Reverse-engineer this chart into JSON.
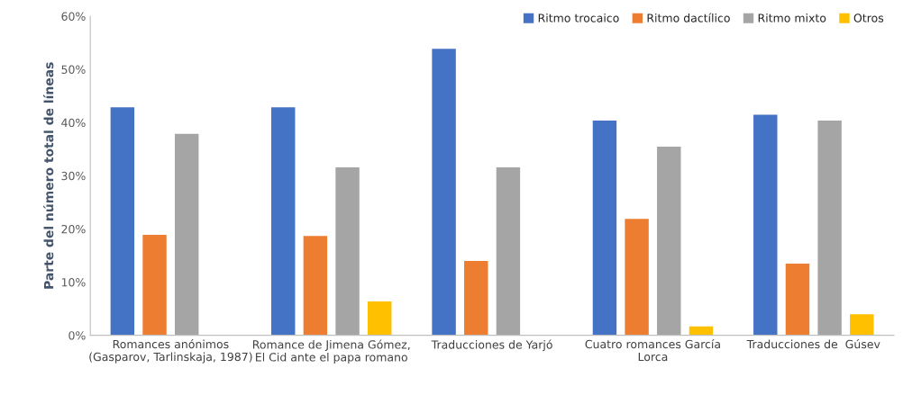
{
  "chart_data": {
    "type": "bar",
    "ylabel": "Parte del número total de líneas",
    "categories": [
      "Romances anónimos\n(Gasparov, Tarlinskaja, 1987)",
      "Romance de Jimena Gómez,\nEl Cid ante el papa romano",
      "Traducciones de Yarjó",
      "Cuatro romances García\nLorca",
      "Traducciones de  Gúsev"
    ],
    "series": [
      {
        "name": "Ritmo trocaico",
        "color": "#4472c4",
        "values": [
          43,
          43,
          54,
          40.5,
          41.6
        ]
      },
      {
        "name": "Ritmo dactílico",
        "color": "#ed7d31",
        "values": [
          19,
          18.8,
          14.1,
          22,
          13.6
        ]
      },
      {
        "name": "Ritmo mixto",
        "color": "#a5a5a5",
        "values": [
          38,
          31.7,
          31.7,
          35.6,
          40.5
        ]
      },
      {
        "name": "Otros",
        "color": "#ffc000",
        "values": [
          null,
          6.5,
          null,
          1.8,
          4.1
        ]
      }
    ],
    "ylim": [
      0,
      60
    ],
    "yticks": [
      {
        "value": 0,
        "label": "0%"
      },
      {
        "value": 10,
        "label": "10%"
      },
      {
        "value": 20,
        "label": "20%"
      },
      {
        "value": 30,
        "label": "30%"
      },
      {
        "value": 40,
        "label": "40%"
      },
      {
        "value": 50,
        "label": "50%"
      },
      {
        "value": 60,
        "label": "60%"
      }
    ],
    "grid": false,
    "legend": "top right"
  }
}
